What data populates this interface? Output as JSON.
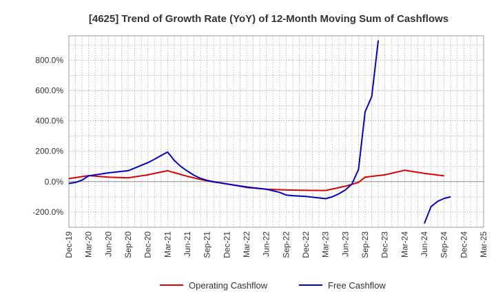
{
  "chart_data": {
    "type": "line",
    "title": "[4625]  Trend of Growth Rate (YoY) of 12-Month Moving Sum of Cashflows",
    "xlabel": "",
    "ylabel": "",
    "x_tick_labels": [
      "Dec-19",
      "Mar-20",
      "Jun-20",
      "Sep-20",
      "Dec-20",
      "Mar-21",
      "Jun-21",
      "Sep-21",
      "Dec-21",
      "Mar-22",
      "Jun-22",
      "Sep-22",
      "Dec-22",
      "Mar-23",
      "Jun-23",
      "Sep-23",
      "Dec-23",
      "Mar-24",
      "Jun-24",
      "Sep-24",
      "Dec-24",
      "Mar-25"
    ],
    "y_ticks": [
      -200,
      0,
      200,
      400,
      600,
      800
    ],
    "y_tick_labels": [
      "-200.0%",
      "0.0%",
      "200.0%",
      "400.0%",
      "600.0%",
      "800.0%"
    ],
    "ylim": [
      -300,
      960
    ],
    "grid": true,
    "legend_position": "bottom",
    "series": [
      {
        "name": "Operating Cashflow",
        "color": "#dd0000",
        "points": [
          [
            "Dec-19",
            20
          ],
          [
            "Mar-20",
            40
          ],
          [
            "Jun-20",
            30
          ],
          [
            "Sep-20",
            25
          ],
          [
            "Dec-20",
            45
          ],
          [
            "Mar-21",
            72
          ],
          [
            "Jun-21",
            35
          ],
          [
            "Sep-21",
            5
          ],
          [
            "Dec-21",
            -15
          ],
          [
            "Mar-22",
            -38
          ],
          [
            "Jun-22",
            -50
          ],
          [
            "Sep-22",
            -55
          ],
          [
            "Dec-22",
            -57
          ],
          [
            "Mar-23",
            -58
          ],
          [
            "Jun-23",
            -30
          ],
          [
            "Aug-23",
            -5
          ],
          [
            "Sep-23",
            30
          ],
          [
            "Dec-23",
            45
          ],
          [
            "Mar-24",
            75
          ],
          [
            "Jun-24",
            55
          ],
          [
            "Sep-24",
            38
          ]
        ]
      },
      {
        "name": "Free Cashflow",
        "color": "#0000cc",
        "points": [
          [
            "Dec-19",
            -12
          ],
          [
            "Jan-20",
            -5
          ],
          [
            "Feb-20",
            10
          ],
          [
            "Mar-20",
            38
          ],
          [
            "Jun-20",
            58
          ],
          [
            "Sep-20",
            72
          ],
          [
            "Dec-20",
            125
          ],
          [
            "Jan-21",
            148
          ],
          [
            "Feb-21",
            172
          ],
          [
            "Mar-21",
            195
          ],
          [
            "Apr-21",
            140
          ],
          [
            "May-21",
            100
          ],
          [
            "Jun-21",
            70
          ],
          [
            "Jul-21",
            42
          ],
          [
            "Aug-21",
            22
          ],
          [
            "Sep-21",
            8
          ],
          [
            "Oct-21",
            0
          ],
          [
            "Dec-21",
            -15
          ],
          [
            "Mar-22",
            -35
          ],
          [
            "Jun-22",
            -50
          ],
          [
            "Jul-22",
            -60
          ],
          [
            "Aug-22",
            -70
          ],
          [
            "Sep-22",
            -88
          ],
          [
            "Oct-22",
            -92
          ],
          [
            "Dec-22",
            -97
          ],
          [
            "Mar-23",
            -112
          ],
          [
            "Apr-23",
            -100
          ],
          [
            "May-23",
            -80
          ],
          [
            "Jun-23",
            -55
          ],
          [
            "Jul-23",
            -15
          ],
          [
            "Aug-23",
            80
          ],
          [
            "Sep-23",
            460
          ],
          [
            "Oct-23",
            560
          ],
          [
            "Nov-23",
            930
          ],
          null,
          [
            "Jun-24",
            -275
          ],
          [
            "Jul-24",
            -165
          ],
          [
            "Aug-24",
            -130
          ],
          [
            "Sep-24",
            -110
          ],
          [
            "Oct-24",
            -100
          ]
        ]
      }
    ]
  }
}
